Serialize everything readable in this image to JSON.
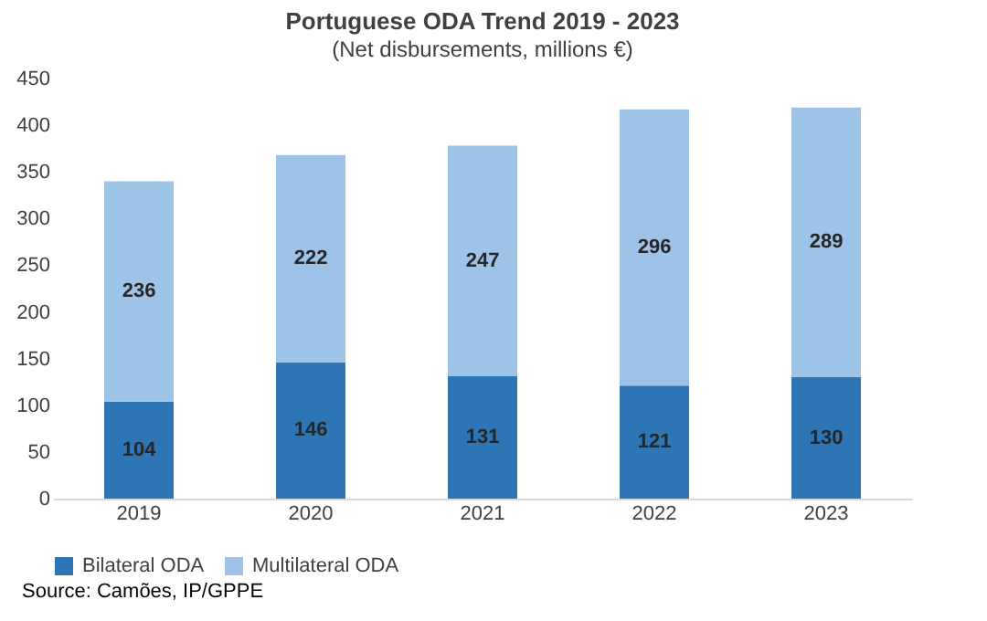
{
  "chart_data": {
    "type": "bar",
    "title": "Portuguese ODA Trend 2019 - 2023",
    "subtitle": "(Net disbursements, millions €)",
    "categories": [
      "2019",
      "2020",
      "2021",
      "2022",
      "2023"
    ],
    "series": [
      {
        "name": "Bilateral ODA",
        "color": "#2e75b6",
        "values": [
          104,
          146,
          131,
          121,
          130
        ]
      },
      {
        "name": "Multilateral ODA",
        "color": "#9dc3e6",
        "values": [
          236,
          222,
          247,
          296,
          289
        ]
      }
    ],
    "stacked": true,
    "ylim": [
      0,
      450
    ],
    "yticks": [
      0,
      50,
      100,
      150,
      200,
      250,
      300,
      350,
      400,
      450
    ],
    "grid": false,
    "legend": "bottom",
    "data_labels": true,
    "annotations": [
      "Source: Camões, IP/GPPE"
    ]
  }
}
